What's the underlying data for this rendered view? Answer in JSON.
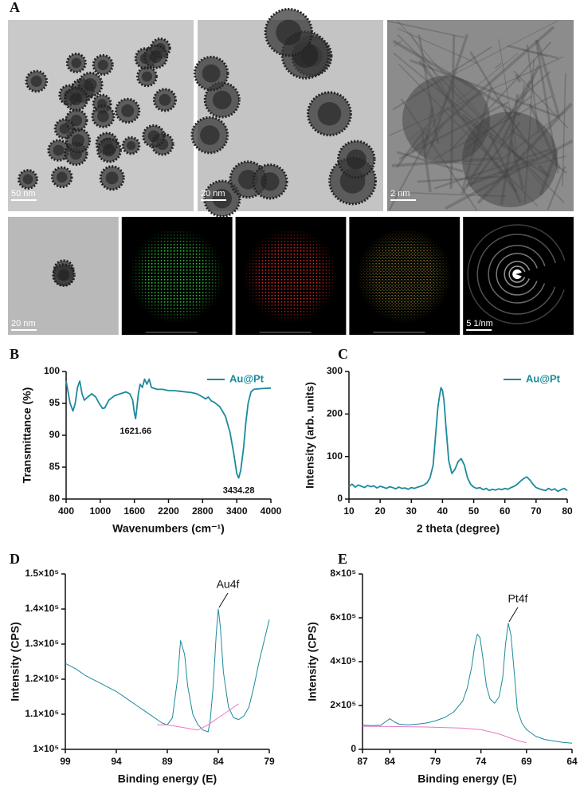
{
  "panel_a": {
    "label": "A",
    "scale_bars": [
      "50 nm",
      "20 nm",
      "2 nm",
      "20 nm",
      "5 1/nm"
    ]
  },
  "chart_data": [
    {
      "type": "line",
      "label": "B",
      "xlabel": "Wavenumbers (cm⁻¹)",
      "ylabel": "Transmittance (%)",
      "xlim": [
        400,
        4000
      ],
      "xticks": [
        400,
        1000,
        1600,
        2200,
        2800,
        3400,
        4000
      ],
      "ylim": [
        80,
        100
      ],
      "yticks": [
        80,
        85,
        90,
        95,
        100
      ],
      "legend": "upper right",
      "series": [
        {
          "name": "Au@Pt",
          "color": "#1b8a9c",
          "x": [
            400,
            430,
            470,
            520,
            560,
            600,
            640,
            680,
            720,
            780,
            850,
            920,
            980,
            1040,
            1080,
            1150,
            1250,
            1350,
            1450,
            1520,
            1570,
            1600,
            1621.66,
            1640,
            1670,
            1700,
            1740,
            1780,
            1820,
            1860,
            1900,
            2000,
            2100,
            2200,
            2300,
            2400,
            2500,
            2600,
            2700,
            2800,
            2850,
            2900,
            2950,
            3000,
            3100,
            3200,
            3280,
            3350,
            3400,
            3434.28,
            3470,
            3520,
            3560,
            3600,
            3650,
            3700,
            3800,
            4000
          ],
          "values": [
            98.5,
            97,
            95,
            93.8,
            95,
            97.5,
            98.5,
            96.5,
            95.5,
            96,
            96.5,
            96,
            95,
            94.2,
            94.3,
            95.5,
            96.2,
            96.5,
            96.8,
            96.5,
            95.5,
            93.5,
            92.6,
            94,
            96.5,
            98,
            97.5,
            98.8,
            98,
            98.8,
            97.5,
            97.2,
            97.2,
            97,
            97,
            96.9,
            96.8,
            96.7,
            96.5,
            96,
            95.7,
            96,
            95.4,
            95.2,
            94.5,
            93,
            90.5,
            87,
            84,
            83.3,
            84.5,
            88,
            92,
            95,
            96.8,
            97.2,
            97.3,
            97.4
          ]
        }
      ],
      "annotations": [
        {
          "text": "1621.66",
          "x": 1621.66,
          "y": 92.6
        },
        {
          "text": "3434.28",
          "x": 3434.28,
          "y": 83.3
        }
      ]
    },
    {
      "type": "line",
      "label": "C",
      "xlabel": "2 theta (degree)",
      "ylabel": "Intensity (arb. units)",
      "xlim": [
        10,
        80
      ],
      "xticks": [
        10,
        20,
        30,
        40,
        50,
        60,
        70,
        80
      ],
      "ylim": [
        0,
        300
      ],
      "yticks": [
        0,
        100,
        200,
        300
      ],
      "legend": "upper right",
      "series": [
        {
          "name": "Au@Pt",
          "color": "#1b8a9c",
          "x": [
            10,
            11,
            12,
            13,
            14,
            15,
            16,
            17,
            18,
            19,
            20,
            21,
            22,
            23,
            24,
            25,
            26,
            27,
            28,
            29,
            30,
            31,
            32,
            33,
            34,
            35,
            36,
            37,
            38,
            38.5,
            39,
            39.5,
            40,
            40.5,
            41,
            42,
            43,
            44,
            45,
            46,
            47,
            48,
            49,
            50,
            51,
            52,
            53,
            54,
            55,
            56,
            57,
            58,
            59,
            60,
            61,
            62,
            63,
            64,
            65,
            66,
            67,
            68,
            69,
            70,
            71,
            72,
            73,
            74,
            75,
            76,
            77,
            78,
            79,
            80
          ],
          "values": [
            30,
            35,
            28,
            33,
            30,
            27,
            32,
            29,
            31,
            26,
            30,
            28,
            25,
            29,
            27,
            24,
            28,
            25,
            26,
            23,
            27,
            25,
            28,
            30,
            33,
            38,
            50,
            80,
            170,
            215,
            240,
            262,
            255,
            230,
            180,
            90,
            60,
            70,
            88,
            95,
            80,
            50,
            35,
            28,
            25,
            27,
            22,
            25,
            20,
            23,
            21,
            24,
            22,
            25,
            23,
            27,
            30,
            35,
            42,
            48,
            52,
            45,
            35,
            27,
            24,
            22,
            20,
            25,
            21,
            24,
            18,
            22,
            25,
            20
          ]
        }
      ]
    },
    {
      "type": "line",
      "label": "D",
      "xlabel": "Binding energy (E)",
      "ylabel": "Intensity (CPS)",
      "xlim": [
        99,
        79
      ],
      "xticks": [
        99,
        94,
        89,
        84,
        79
      ],
      "ylim": [
        100000,
        150000
      ],
      "yticks": [
        {
          "value": 100000,
          "label": "1×10⁵"
        },
        {
          "value": 110000,
          "label": "1.1×10⁵"
        },
        {
          "value": 120000,
          "label": "1.2×10⁵"
        },
        {
          "value": 130000,
          "label": "1.3×10⁵"
        },
        {
          "value": 140000,
          "label": "1.4×10⁵"
        },
        {
          "value": 150000,
          "label": "1.5×10⁵"
        }
      ],
      "series": [
        {
          "color": "#1b8a9c",
          "x": [
            99,
            98,
            97,
            96,
            95,
            94,
            93,
            92,
            91,
            90,
            89.5,
            89,
            88.5,
            88,
            87.7,
            87.3,
            87,
            86.5,
            86,
            85.5,
            85,
            84.8,
            84.5,
            84.2,
            84,
            83.8,
            83.5,
            83,
            82.5,
            82,
            81.5,
            81,
            80.5,
            80,
            79.5,
            79
          ],
          "values": [
            124500,
            123000,
            121000,
            119500,
            118000,
            116500,
            114500,
            112500,
            110500,
            108500,
            107500,
            107000,
            109000,
            120000,
            131000,
            127000,
            118000,
            110000,
            107000,
            105500,
            105000,
            108000,
            118000,
            133000,
            140000,
            135000,
            122000,
            112000,
            109000,
            108500,
            109500,
            112000,
            118000,
            125000,
            131000,
            137000
          ]
        },
        {
          "color": "#e879c8",
          "x": [
            90,
            89,
            88,
            87,
            86,
            85,
            84,
            83,
            82
          ],
          "values": [
            107000,
            107000,
            106500,
            106000,
            105500,
            107000,
            109000,
            111000,
            113000
          ]
        }
      ],
      "annotations": [
        {
          "text": "Au4f",
          "x": 84,
          "y": 140000,
          "arrow": true
        }
      ]
    },
    {
      "type": "line",
      "label": "E",
      "xlabel": "Binding energy (E)",
      "ylabel": "Intensity (CPS)",
      "xlim": [
        87,
        64
      ],
      "xticks": [
        87,
        84,
        79,
        74,
        69,
        64
      ],
      "ylim": [
        0,
        800000
      ],
      "yticks": [
        0,
        {
          "value": 200000,
          "label": "2×10⁵"
        },
        {
          "value": 400000,
          "label": "4×10⁵"
        },
        {
          "value": 600000,
          "label": "6×10⁵"
        },
        {
          "value": 800000,
          "label": "8×10⁵"
        }
      ],
      "series": [
        {
          "color": "#1b8a9c",
          "x": [
            87,
            86,
            85,
            84.5,
            84,
            83.5,
            83,
            82,
            81,
            80,
            79,
            78,
            77,
            76,
            75.5,
            75,
            74.7,
            74.4,
            74.1,
            73.8,
            73.4,
            73,
            72.5,
            72,
            71.6,
            71.3,
            71,
            70.7,
            70.3,
            70,
            69.5,
            69,
            68,
            67,
            66,
            65,
            64
          ],
          "values": [
            110000,
            108000,
            110000,
            125000,
            140000,
            125000,
            115000,
            112000,
            115000,
            120000,
            130000,
            145000,
            170000,
            220000,
            280000,
            380000,
            470000,
            525000,
            510000,
            420000,
            290000,
            230000,
            210000,
            240000,
            330000,
            480000,
            575000,
            520000,
            330000,
            180000,
            120000,
            90000,
            60000,
            45000,
            38000,
            32000,
            28000
          ]
        },
        {
          "color": "#e879c8",
          "x": [
            87,
            84,
            80,
            76,
            74,
            72,
            71,
            70,
            69
          ],
          "values": [
            105000,
            104000,
            102000,
            97000,
            90000,
            70000,
            55000,
            40000,
            30000
          ]
        }
      ],
      "annotations": [
        {
          "text": "Pt4f",
          "x": 71,
          "y": 575000,
          "arrow": true
        }
      ]
    }
  ]
}
